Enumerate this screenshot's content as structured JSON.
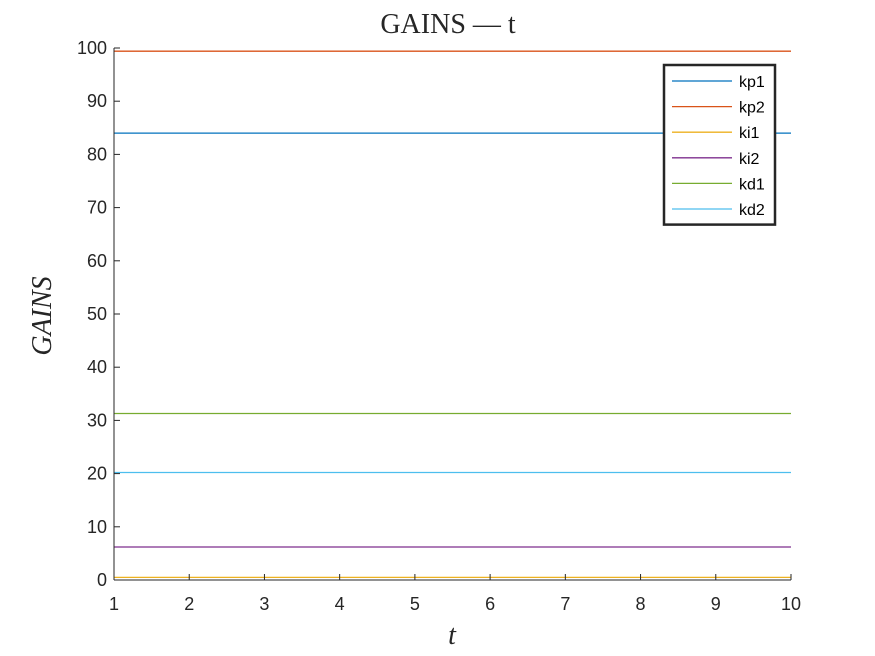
{
  "chart_data": {
    "type": "line",
    "title": "GAINS — t",
    "xlabel": "t",
    "ylabel": "GAINS",
    "xlim": [
      1,
      10
    ],
    "ylim": [
      0,
      100
    ],
    "xticks": [
      1,
      2,
      3,
      4,
      5,
      6,
      7,
      8,
      9,
      10
    ],
    "yticks": [
      0,
      10,
      20,
      30,
      40,
      50,
      60,
      70,
      80,
      90,
      100
    ],
    "x": [
      1,
      10
    ],
    "series": [
      {
        "name": "kp1",
        "values": [
          84,
          84
        ],
        "color": "#0072BD"
      },
      {
        "name": "kp2",
        "values": [
          99.4,
          99.4
        ],
        "color": "#D95319"
      },
      {
        "name": "ki1",
        "values": [
          0.5,
          0.5
        ],
        "color": "#EDB120"
      },
      {
        "name": "ki2",
        "values": [
          6.2,
          6.2
        ],
        "color": "#7E2F8E"
      },
      {
        "name": "kd1",
        "values": [
          31.3,
          31.3
        ],
        "color": "#77AC30"
      },
      {
        "name": "kd2",
        "values": [
          20.2,
          20.2
        ],
        "color": "#4DBEEE"
      }
    ],
    "grid": false,
    "legend_position": "top-right"
  }
}
